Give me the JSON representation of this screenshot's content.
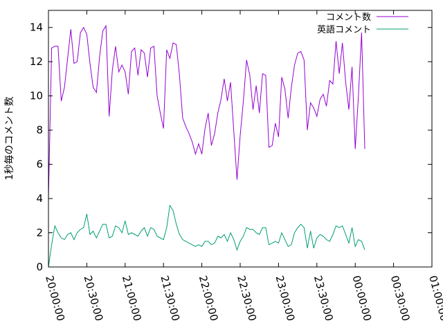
{
  "chart_data": {
    "type": "line",
    "title": "",
    "xlabel": "",
    "ylabel": "1秒毎のコメント数",
    "x_ticks": [
      "20:00:00",
      "20:30:00",
      "21:00:00",
      "21:30:00",
      "22:00:00",
      "22:30:00",
      "23:00:00",
      "23:30:00",
      "00:00:00",
      "00:30:00",
      "01:00:00"
    ],
    "y_ticks": [
      "0",
      "2",
      "4",
      "6",
      "8",
      "10",
      "12",
      "14"
    ],
    "ylim": [
      0,
      15
    ],
    "xlim_minutes": [
      0,
      300
    ],
    "legend_position": "top-right",
    "grid": false,
    "sample_interval_minutes": 2.5,
    "series": [
      {
        "name": "コメント数",
        "color": "#9400d3",
        "values": [
          4.0,
          12.8,
          12.9,
          12.9,
          9.7,
          10.5,
          12.2,
          13.9,
          11.9,
          12.0,
          13.7,
          14.0,
          13.6,
          11.9,
          10.5,
          10.2,
          12.3,
          13.8,
          14.1,
          8.8,
          11.5,
          12.9,
          11.4,
          11.8,
          11.4,
          10.1,
          12.6,
          12.8,
          11.2,
          12.7,
          12.5,
          11.1,
          12.8,
          12.9,
          10.0,
          9.0,
          8.1,
          12.7,
          12.2,
          13.1,
          13.0,
          11.2,
          8.7,
          8.2,
          7.8,
          7.3,
          6.6,
          7.2,
          6.6,
          8.1,
          9.0,
          7.1,
          7.8,
          9.0,
          9.8,
          11.0,
          9.7,
          10.8,
          7.9,
          5.1,
          7.7,
          9.7,
          12.1,
          11.2,
          9.2,
          10.6,
          9.0,
          11.3,
          11.2,
          7.0,
          7.1,
          8.4,
          7.6,
          11.1,
          10.4,
          8.7,
          10.5,
          11.8,
          12.5,
          12.6,
          12.1,
          8.0,
          9.6,
          9.3,
          8.8,
          9.8,
          10.1,
          9.4,
          10.9,
          10.7,
          13.2,
          11.3,
          13.1,
          10.8,
          9.2,
          11.7,
          6.9,
          10.0,
          13.7,
          6.9
        ]
      },
      {
        "name": "英語コメント",
        "color": "#009e73",
        "values": [
          0.0,
          1.3,
          2.4,
          2.0,
          1.7,
          1.6,
          1.9,
          2.0,
          1.6,
          2.0,
          2.2,
          2.3,
          3.1,
          1.9,
          2.1,
          1.7,
          2.1,
          2.5,
          2.5,
          1.7,
          1.8,
          2.4,
          2.3,
          2.0,
          2.7,
          1.9,
          2.0,
          1.9,
          1.8,
          2.1,
          2.3,
          1.8,
          2.3,
          2.2,
          1.8,
          1.7,
          1.6,
          2.3,
          3.6,
          3.3,
          2.5,
          1.9,
          1.6,
          1.5,
          1.4,
          1.3,
          1.2,
          1.3,
          1.2,
          1.5,
          1.5,
          1.3,
          1.4,
          1.8,
          1.7,
          1.9,
          1.5,
          2.0,
          1.6,
          1.0,
          1.5,
          1.8,
          2.3,
          2.2,
          2.2,
          2.0,
          1.9,
          2.3,
          2.3,
          1.3,
          1.4,
          1.5,
          1.4,
          2.0,
          1.6,
          1.2,
          1.3,
          2.0,
          2.3,
          2.5,
          2.3,
          1.1,
          2.1,
          1.1,
          1.7,
          1.9,
          1.8,
          1.6,
          1.5,
          1.9,
          2.4,
          2.3,
          2.4,
          1.9,
          1.4,
          2.3,
          1.2,
          1.6,
          1.5,
          1.0
        ]
      }
    ]
  }
}
